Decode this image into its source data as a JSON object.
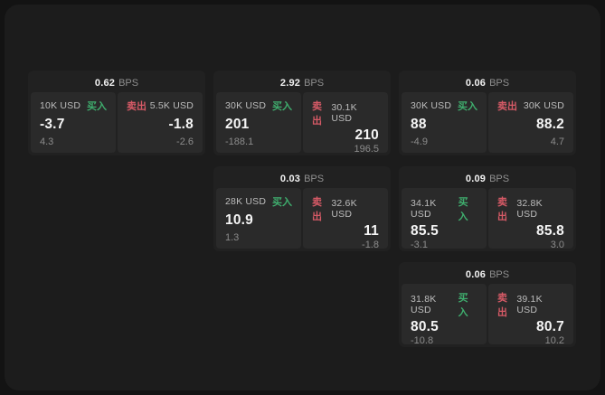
{
  "labels": {
    "bps_unit": "BPS",
    "buy": "买入",
    "sell": "卖出"
  },
  "colors": {
    "buy_green": "#3fae6e",
    "sell_red": "#d65a66",
    "panel_bg": "#1c1c1c",
    "card_bg": "#212121",
    "subcard_bg": "#2a2a2a"
  },
  "cards": [
    {
      "col": "1",
      "row": "1",
      "bps": "0.62",
      "buy": {
        "amount": "10K USD",
        "value": "-3.7",
        "delta": "4.3"
      },
      "sell": {
        "amount": "5.5K USD",
        "value": "-1.8",
        "delta": "-2.6"
      }
    },
    {
      "col": "2",
      "row": "1",
      "bps": "2.92",
      "buy": {
        "amount": "30K USD",
        "value": "201",
        "delta": "-188.1"
      },
      "sell": {
        "amount": "30.1K USD",
        "value": "210",
        "delta": "196.5"
      }
    },
    {
      "col": "3",
      "row": "1",
      "bps": "0.06",
      "buy": {
        "amount": "30K USD",
        "value": "88",
        "delta": "-4.9"
      },
      "sell": {
        "amount": "30K USD",
        "value": "88.2",
        "delta": "4.7"
      }
    },
    {
      "col": "2",
      "row": "2",
      "bps": "0.03",
      "buy": {
        "amount": "28K USD",
        "value": "10.9",
        "delta": "1.3"
      },
      "sell": {
        "amount": "32.6K USD",
        "value": "11",
        "delta": "-1.8"
      }
    },
    {
      "col": "3",
      "row": "2",
      "bps": "0.09",
      "buy": {
        "amount": "34.1K USD",
        "value": "85.5",
        "delta": "-3.1"
      },
      "sell": {
        "amount": "32.8K USD",
        "value": "85.8",
        "delta": "3.0"
      }
    },
    {
      "col": "3",
      "row": "3",
      "bps": "0.06",
      "buy": {
        "amount": "31.8K USD",
        "value": "80.5",
        "delta": "-10.8"
      },
      "sell": {
        "amount": "39.1K USD",
        "value": "80.7",
        "delta": "10.2"
      }
    }
  ]
}
